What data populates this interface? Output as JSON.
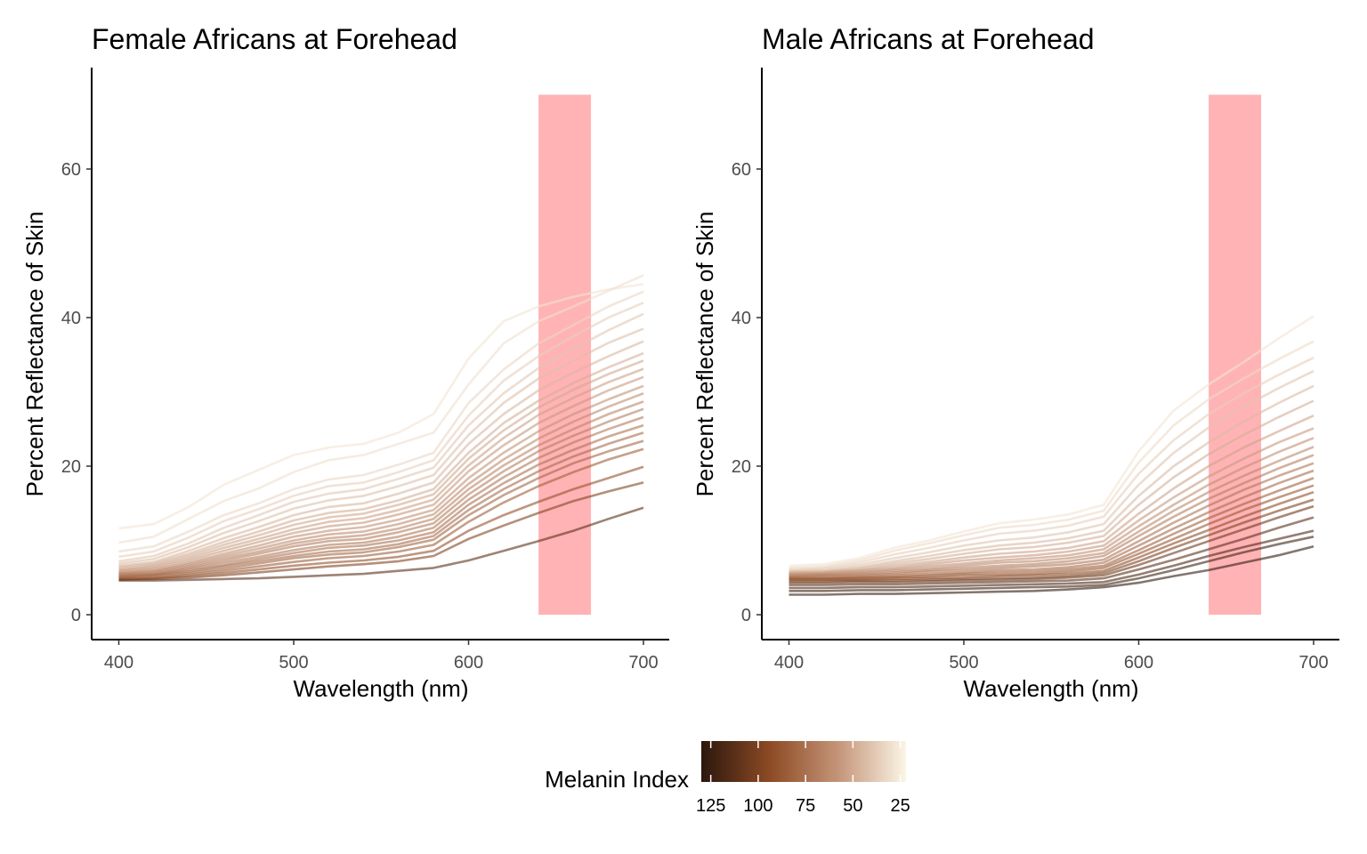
{
  "chart_data": [
    {
      "type": "line",
      "title": "Female Africans at Forehead",
      "xlabel": "Wavelength (nm)",
      "ylabel": "Percent Reflectance of Skin",
      "xlim": [
        400,
        700
      ],
      "ylim": [
        0,
        70
      ],
      "xticks": [
        400,
        500,
        600,
        700
      ],
      "yticks": [
        0,
        20,
        40,
        60
      ],
      "grid": false,
      "highlight_band": {
        "x": [
          640,
          670
        ],
        "y": [
          0,
          70
        ],
        "color": "#ff8a8e",
        "opacity": 0.65
      },
      "x": [
        400,
        420,
        440,
        460,
        480,
        500,
        520,
        540,
        560,
        580,
        600,
        620,
        640,
        660,
        680,
        700
      ],
      "series": [
        {
          "melanin": 28,
          "values": [
            11.6,
            12.2,
            14.5,
            17.5,
            19.5,
            21.5,
            22.5,
            23.0,
            24.5,
            27.0,
            34.5,
            39.5,
            41.5,
            42.8,
            43.8,
            44.5
          ]
        },
        {
          "melanin": 30,
          "values": [
            9.7,
            10.5,
            12.9,
            15.3,
            17.0,
            19.2,
            20.8,
            21.5,
            23.0,
            24.5,
            31.0,
            36.5,
            39.5,
            41.5,
            43.6,
            45.7
          ]
        },
        {
          "melanin": 33,
          "values": [
            8.5,
            9.2,
            11.2,
            13.4,
            15.0,
            16.9,
            18.2,
            18.8,
            20.2,
            21.8,
            28.5,
            33.0,
            36.5,
            39.0,
            41.5,
            43.5
          ]
        },
        {
          "melanin": 36,
          "values": [
            7.8,
            8.5,
            10.4,
            12.6,
            14.2,
            16.0,
            17.3,
            17.8,
            19.2,
            20.8,
            26.8,
            31.5,
            34.8,
            37.5,
            40.0,
            42.0
          ]
        },
        {
          "melanin": 39,
          "values": [
            7.2,
            7.9,
            9.6,
            11.7,
            13.4,
            15.2,
            16.3,
            16.9,
            18.3,
            19.8,
            25.5,
            29.8,
            33.2,
            35.8,
            38.3,
            40.5
          ]
        },
        {
          "melanin": 42,
          "values": [
            6.9,
            7.5,
            9.1,
            11.0,
            12.6,
            14.3,
            15.4,
            16.0,
            17.3,
            18.8,
            24.2,
            28.5,
            31.8,
            34.2,
            36.6,
            38.5
          ]
        },
        {
          "melanin": 45,
          "values": [
            6.6,
            7.1,
            8.6,
            10.3,
            11.8,
            13.4,
            14.5,
            15.0,
            16.3,
            17.8,
            23.0,
            27.0,
            30.2,
            32.6,
            34.8,
            36.8
          ]
        },
        {
          "melanin": 48,
          "values": [
            6.4,
            6.9,
            8.2,
            9.8,
            11.2,
            12.7,
            13.7,
            14.2,
            15.4,
            16.9,
            21.8,
            25.8,
            28.8,
            31.2,
            33.3,
            35.2
          ]
        },
        {
          "melanin": 50,
          "values": [
            6.2,
            6.7,
            7.9,
            9.4,
            10.7,
            12.1,
            13.1,
            13.6,
            14.8,
            16.2,
            21.0,
            24.8,
            27.9,
            30.3,
            32.4,
            34.2
          ]
        },
        {
          "melanin": 53,
          "values": [
            6.0,
            6.5,
            7.6,
            9.0,
            10.2,
            11.5,
            12.5,
            13.0,
            14.1,
            15.5,
            20.1,
            23.8,
            26.9,
            29.2,
            31.3,
            33.1
          ]
        },
        {
          "melanin": 56,
          "values": [
            5.9,
            6.3,
            7.3,
            8.6,
            9.8,
            11.0,
            11.9,
            12.4,
            13.5,
            14.8,
            19.3,
            22.8,
            25.8,
            28.1,
            30.2,
            32.0
          ]
        },
        {
          "melanin": 59,
          "values": [
            5.7,
            6.1,
            7.0,
            8.2,
            9.3,
            10.5,
            11.3,
            11.8,
            12.8,
            14.1,
            18.4,
            21.8,
            24.7,
            27.0,
            29.0,
            30.8
          ]
        },
        {
          "melanin": 62,
          "values": [
            5.6,
            5.9,
            6.8,
            7.9,
            8.9,
            10.0,
            10.8,
            11.2,
            12.2,
            13.5,
            17.6,
            20.9,
            23.7,
            26.0,
            28.0,
            29.8
          ]
        },
        {
          "melanin": 65,
          "values": [
            5.5,
            5.8,
            6.6,
            7.6,
            8.5,
            9.6,
            10.3,
            10.7,
            11.6,
            12.9,
            16.9,
            20.1,
            22.8,
            25.0,
            27.0,
            28.7
          ]
        },
        {
          "melanin": 68,
          "values": [
            5.4,
            5.6,
            6.4,
            7.3,
            8.2,
            9.2,
            9.9,
            10.2,
            11.1,
            12.3,
            16.2,
            19.3,
            22.0,
            24.1,
            26.0,
            27.7
          ]
        },
        {
          "melanin": 71,
          "values": [
            5.3,
            5.5,
            6.2,
            7.0,
            7.8,
            8.7,
            9.4,
            9.7,
            10.5,
            11.7,
            15.5,
            18.5,
            21.1,
            23.2,
            25.0,
            26.6
          ]
        },
        {
          "melanin": 74,
          "values": [
            5.2,
            5.4,
            6.0,
            6.7,
            7.5,
            8.3,
            9.0,
            9.3,
            10.0,
            11.1,
            14.8,
            17.7,
            20.2,
            22.2,
            24.0,
            25.5
          ]
        },
        {
          "melanin": 77,
          "values": [
            5.1,
            5.3,
            5.8,
            6.5,
            7.2,
            7.9,
            8.5,
            8.8,
            9.5,
            10.6,
            14.1,
            16.9,
            19.3,
            21.3,
            23.0,
            24.5
          ]
        },
        {
          "melanin": 80,
          "values": [
            5.0,
            5.2,
            5.6,
            6.2,
            6.9,
            7.6,
            8.1,
            8.4,
            9.1,
            10.1,
            13.4,
            16.1,
            18.4,
            20.4,
            22.0,
            23.4
          ]
        },
        {
          "melanin": 84,
          "values": [
            4.9,
            5.0,
            5.4,
            5.9,
            6.5,
            7.1,
            7.6,
            7.9,
            8.5,
            9.4,
            12.5,
            15.1,
            17.3,
            19.2,
            20.9,
            22.3
          ]
        },
        {
          "melanin": 90,
          "values": [
            4.8,
            4.9,
            5.2,
            5.6,
            6.1,
            6.6,
            7.0,
            7.3,
            7.8,
            8.6,
            11.3,
            13.4,
            15.2,
            16.9,
            18.4,
            19.9
          ]
        },
        {
          "melanin": 98,
          "values": [
            4.7,
            4.8,
            5.0,
            5.3,
            5.7,
            6.1,
            6.5,
            6.8,
            7.2,
            7.9,
            10.2,
            12.0,
            13.7,
            15.3,
            16.6,
            17.8
          ]
        },
        {
          "melanin": 112,
          "values": [
            4.6,
            4.6,
            4.7,
            4.8,
            4.9,
            5.1,
            5.3,
            5.5,
            5.9,
            6.3,
            7.3,
            8.6,
            9.9,
            11.3,
            12.9,
            14.4
          ]
        }
      ]
    },
    {
      "type": "line",
      "title": "Male Africans at Forehead",
      "xlabel": "Wavelength (nm)",
      "ylabel": "Percent Reflectance of Skin",
      "xlim": [
        400,
        700
      ],
      "ylim": [
        0,
        70
      ],
      "xticks": [
        400,
        500,
        600,
        700
      ],
      "yticks": [
        0,
        20,
        40,
        60
      ],
      "grid": false,
      "highlight_band": {
        "x": [
          640,
          670
        ],
        "y": [
          0,
          70
        ],
        "color": "#ff8a8e",
        "opacity": 0.65
      },
      "x": [
        400,
        420,
        440,
        460,
        480,
        500,
        520,
        540,
        560,
        580,
        600,
        620,
        640,
        660,
        680,
        700
      ],
      "series": [
        {
          "melanin": 28,
          "values": [
            6.6,
            6.8,
            7.6,
            9.0,
            10.0,
            11.2,
            12.3,
            12.8,
            13.5,
            14.8,
            22.0,
            27.5,
            31.0,
            34.0,
            37.2,
            40.2
          ]
        },
        {
          "melanin": 32,
          "values": [
            6.3,
            6.5,
            7.3,
            8.6,
            9.6,
            10.7,
            11.7,
            12.1,
            12.8,
            14.0,
            20.5,
            25.5,
            29.0,
            31.8,
            34.4,
            36.8
          ]
        },
        {
          "melanin": 36,
          "values": [
            6.1,
            6.3,
            7.0,
            8.1,
            9.0,
            10.0,
            10.9,
            11.3,
            12.0,
            13.2,
            19.0,
            23.5,
            27.0,
            29.8,
            32.3,
            34.6
          ]
        },
        {
          "melanin": 40,
          "values": [
            5.9,
            6.1,
            6.7,
            7.6,
            8.4,
            9.3,
            10.0,
            10.4,
            11.1,
            12.2,
            17.5,
            21.8,
            25.2,
            28.0,
            30.5,
            32.8
          ]
        },
        {
          "melanin": 44,
          "values": [
            5.8,
            5.9,
            6.4,
            7.2,
            7.9,
            8.7,
            9.3,
            9.7,
            10.3,
            11.3,
            16.0,
            20.0,
            23.2,
            26.0,
            28.5,
            30.8
          ]
        },
        {
          "melanin": 48,
          "values": [
            5.7,
            5.8,
            6.2,
            6.9,
            7.5,
            8.2,
            8.8,
            9.1,
            9.7,
            10.6,
            14.8,
            18.5,
            21.6,
            24.2,
            26.6,
            28.8
          ]
        },
        {
          "melanin": 52,
          "values": [
            5.6,
            5.7,
            6.0,
            6.6,
            7.1,
            7.7,
            8.2,
            8.5,
            9.0,
            9.9,
            13.6,
            17.0,
            20.0,
            22.5,
            24.7,
            26.8
          ]
        },
        {
          "melanin": 56,
          "values": [
            5.5,
            5.6,
            5.9,
            6.3,
            6.8,
            7.3,
            7.7,
            8.0,
            8.5,
            9.3,
            12.7,
            15.8,
            18.6,
            21.0,
            23.2,
            25.1
          ]
        },
        {
          "melanin": 60,
          "values": [
            5.4,
            5.5,
            5.7,
            6.1,
            6.5,
            6.9,
            7.3,
            7.6,
            8.0,
            8.8,
            11.9,
            14.8,
            17.5,
            19.8,
            21.9,
            23.8
          ]
        },
        {
          "melanin": 64,
          "values": [
            5.3,
            5.4,
            5.6,
            5.9,
            6.2,
            6.6,
            7.0,
            7.2,
            7.6,
            8.3,
            11.2,
            14.0,
            16.5,
            18.7,
            20.7,
            22.6
          ]
        },
        {
          "melanin": 68,
          "values": [
            5.2,
            5.3,
            5.4,
            5.7,
            6.0,
            6.3,
            6.6,
            6.8,
            7.2,
            7.9,
            10.6,
            13.2,
            15.6,
            17.7,
            19.7,
            21.5
          ]
        },
        {
          "melanin": 72,
          "values": [
            5.1,
            5.2,
            5.3,
            5.5,
            5.8,
            6.0,
            6.3,
            6.5,
            6.8,
            7.4,
            9.9,
            12.4,
            14.7,
            16.8,
            18.7,
            20.4
          ]
        },
        {
          "melanin": 77,
          "values": [
            5.0,
            5.0,
            5.1,
            5.3,
            5.5,
            5.7,
            6.0,
            6.1,
            6.4,
            7.0,
            9.3,
            11.6,
            13.8,
            15.8,
            17.7,
            19.4
          ]
        },
        {
          "melanin": 82,
          "values": [
            4.9,
            4.9,
            5.0,
            5.1,
            5.3,
            5.5,
            5.7,
            5.8,
            6.1,
            6.6,
            8.7,
            10.9,
            13.0,
            14.9,
            16.7,
            18.4
          ]
        },
        {
          "melanin": 87,
          "values": [
            4.8,
            4.8,
            4.9,
            5.0,
            5.1,
            5.3,
            5.4,
            5.5,
            5.8,
            6.3,
            8.2,
            10.2,
            12.2,
            14.1,
            15.8,
            17.4
          ]
        },
        {
          "melanin": 93,
          "values": [
            4.7,
            4.7,
            4.7,
            4.8,
            4.9,
            5.0,
            5.2,
            5.3,
            5.5,
            5.9,
            7.7,
            9.6,
            11.4,
            13.2,
            14.9,
            16.5
          ]
        },
        {
          "melanin": 100,
          "values": [
            4.5,
            4.5,
            4.6,
            4.6,
            4.7,
            4.8,
            4.9,
            5.0,
            5.2,
            5.6,
            7.2,
            9.0,
            10.7,
            12.4,
            14.0,
            15.5
          ]
        },
        {
          "melanin": 106,
          "values": [
            4.3,
            4.3,
            4.4,
            4.4,
            4.5,
            4.6,
            4.7,
            4.8,
            5.0,
            5.3,
            6.7,
            8.3,
            9.9,
            11.5,
            13.1,
            14.6
          ]
        },
        {
          "melanin": 112,
          "values": [
            4.0,
            4.0,
            4.1,
            4.1,
            4.2,
            4.3,
            4.4,
            4.5,
            4.6,
            4.9,
            6.1,
            7.4,
            8.8,
            10.2,
            11.7,
            13.1
          ]
        },
        {
          "melanin": 118,
          "values": [
            3.6,
            3.6,
            3.7,
            3.7,
            3.8,
            3.9,
            4.0,
            4.1,
            4.2,
            4.4,
            5.4,
            6.6,
            7.9,
            9.1,
            10.2,
            11.3
          ]
        },
        {
          "melanin": 123,
          "values": [
            3.2,
            3.2,
            3.3,
            3.3,
            3.4,
            3.5,
            3.6,
            3.7,
            3.8,
            4.0,
            4.9,
            6.0,
            7.2,
            8.4,
            9.5,
            10.5
          ]
        },
        {
          "melanin": 128,
          "values": [
            2.7,
            2.7,
            2.8,
            2.8,
            2.9,
            3.0,
            3.1,
            3.2,
            3.4,
            3.7,
            4.3,
            5.2,
            6.0,
            7.0,
            8.0,
            9.2
          ]
        }
      ]
    }
  ],
  "legend": {
    "title": "Melanin Index",
    "range": [
      22,
      130
    ],
    "ticks": [
      125,
      100,
      75,
      50,
      25
    ],
    "tick_labels": [
      "125",
      "100",
      "75",
      "50",
      "25"
    ],
    "colors": [
      "#2b170d",
      "#8c4a24",
      "#c49478",
      "#fbf5e6"
    ]
  }
}
